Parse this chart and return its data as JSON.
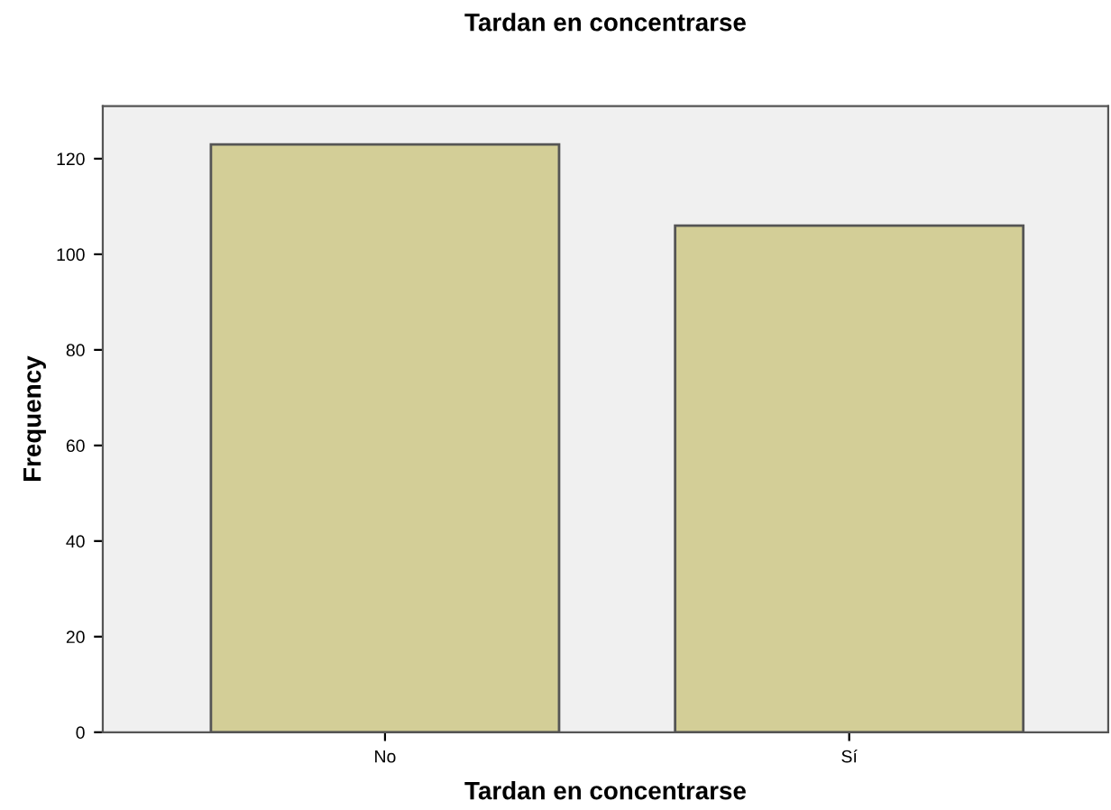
{
  "chart_data": {
    "type": "bar",
    "title": "Tardan en concentrarse",
    "xlabel": "Tardan en concentrarse",
    "ylabel": "Frequency",
    "categories": [
      "No",
      "Sí"
    ],
    "values": [
      123,
      106
    ],
    "color": "#d3ce97",
    "ylim": [
      0,
      131
    ],
    "yticks": [
      0,
      20,
      40,
      60,
      80,
      100,
      120
    ],
    "grid": false,
    "legend": false
  }
}
